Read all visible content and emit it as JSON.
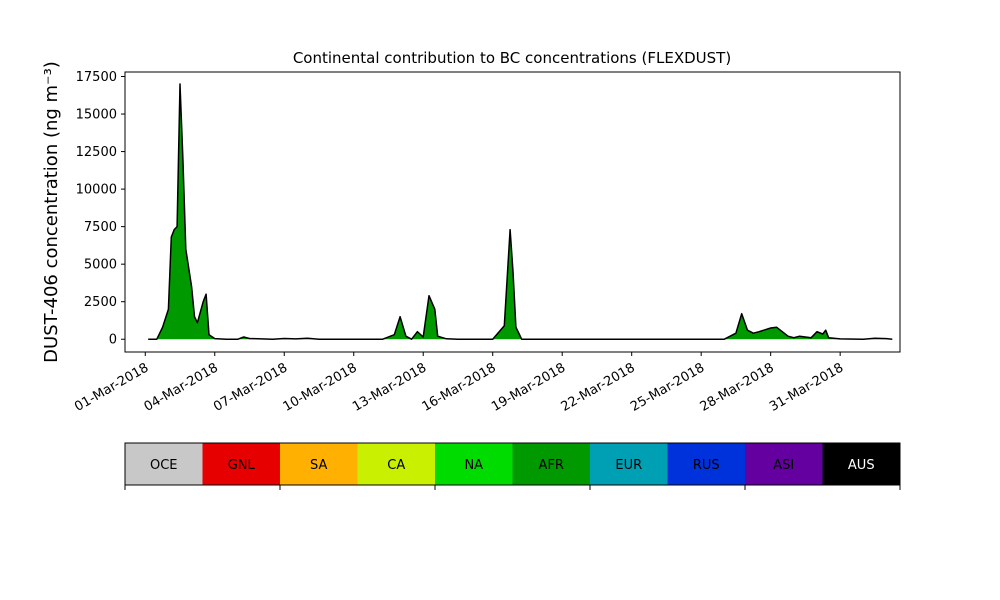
{
  "chart_data": {
    "type": "area",
    "title": "Continental contribution to BC concentrations (FLEXDUST)",
    "ylabel": "DUST-406 concentration (ng m⁻³)",
    "xlabel": "",
    "ylim": [
      -850,
      17800
    ],
    "xlim": [
      "2018-02-28T03:00",
      "2018-04-02T14:00"
    ],
    "grid": false,
    "x_ticks": [
      "01-Mar-2018",
      "04-Mar-2018",
      "07-Mar-2018",
      "10-Mar-2018",
      "13-Mar-2018",
      "16-Mar-2018",
      "19-Mar-2018",
      "22-Mar-2018",
      "25-Mar-2018",
      "28-Mar-2018",
      "31-Mar-2018"
    ],
    "y_ticks": [
      "0",
      "2500",
      "5000",
      "7500",
      "10000",
      "12500",
      "15000",
      "17500"
    ],
    "y_tick_values": [
      0,
      2500,
      5000,
      7500,
      10000,
      12500,
      15000,
      17500
    ],
    "series": [
      {
        "name": "AFR",
        "color": "#009900",
        "points": [
          [
            "2018-03-01T03:00",
            0
          ],
          [
            "2018-03-01T12:00",
            0
          ],
          [
            "2018-03-01T18:00",
            800
          ],
          [
            "2018-03-02T00:00",
            2000
          ],
          [
            "2018-03-02T03:00",
            6800
          ],
          [
            "2018-03-02T06:00",
            7300
          ],
          [
            "2018-03-02T09:00",
            7500
          ],
          [
            "2018-03-02T12:00",
            17000
          ],
          [
            "2018-03-02T15:00",
            12000
          ],
          [
            "2018-03-02T18:00",
            6000
          ],
          [
            "2018-03-03T00:00",
            3500
          ],
          [
            "2018-03-03T03:00",
            1500
          ],
          [
            "2018-03-03T06:00",
            1100
          ],
          [
            "2018-03-03T12:00",
            2500
          ],
          [
            "2018-03-03T15:00",
            3000
          ],
          [
            "2018-03-03T18:00",
            300
          ],
          [
            "2018-03-04T00:00",
            40
          ],
          [
            "2018-03-04T12:00",
            0
          ],
          [
            "2018-03-05T00:00",
            0
          ],
          [
            "2018-03-05T06:00",
            150
          ],
          [
            "2018-03-05T12:00",
            50
          ],
          [
            "2018-03-06T12:00",
            0
          ],
          [
            "2018-03-07T00:00",
            50
          ],
          [
            "2018-03-07T12:00",
            20
          ],
          [
            "2018-03-08T00:00",
            60
          ],
          [
            "2018-03-08T12:00",
            0
          ],
          [
            "2018-03-11T06:00",
            0
          ],
          [
            "2018-03-11T18:00",
            300
          ],
          [
            "2018-03-12T00:00",
            1500
          ],
          [
            "2018-03-12T06:00",
            200
          ],
          [
            "2018-03-12T12:00",
            0
          ],
          [
            "2018-03-12T18:00",
            500
          ],
          [
            "2018-03-13T00:00",
            150
          ],
          [
            "2018-03-13T06:00",
            2900
          ],
          [
            "2018-03-13T12:00",
            2000
          ],
          [
            "2018-03-13T15:00",
            200
          ],
          [
            "2018-03-14T00:00",
            30
          ],
          [
            "2018-03-14T12:00",
            0
          ],
          [
            "2018-03-16T00:00",
            0
          ],
          [
            "2018-03-16T12:00",
            900
          ],
          [
            "2018-03-16T18:00",
            7300
          ],
          [
            "2018-03-16T21:00",
            4500
          ],
          [
            "2018-03-17T00:00",
            800
          ],
          [
            "2018-03-17T06:00",
            0
          ],
          [
            "2018-03-26T00:00",
            0
          ],
          [
            "2018-03-26T12:00",
            400
          ],
          [
            "2018-03-26T18:00",
            1700
          ],
          [
            "2018-03-27T00:00",
            600
          ],
          [
            "2018-03-27T06:00",
            400
          ],
          [
            "2018-03-27T12:00",
            500
          ],
          [
            "2018-03-28T00:00",
            750
          ],
          [
            "2018-03-28T06:00",
            800
          ],
          [
            "2018-03-28T12:00",
            500
          ],
          [
            "2018-03-28T18:00",
            200
          ],
          [
            "2018-03-29T00:00",
            100
          ],
          [
            "2018-03-29T06:00",
            200
          ],
          [
            "2018-03-29T12:00",
            150
          ],
          [
            "2018-03-29T18:00",
            100
          ],
          [
            "2018-03-30T00:00",
            500
          ],
          [
            "2018-03-30T06:00",
            350
          ],
          [
            "2018-03-30T09:00",
            600
          ],
          [
            "2018-03-30T12:00",
            100
          ],
          [
            "2018-03-31T00:00",
            20
          ],
          [
            "2018-04-01T00:00",
            0
          ],
          [
            "2018-04-01T12:00",
            60
          ],
          [
            "2018-04-02T00:00",
            40
          ],
          [
            "2018-04-02T06:00",
            0
          ]
        ]
      }
    ],
    "total_line_color": "#000000"
  },
  "legend": {
    "placement": "bottom",
    "items": [
      {
        "label": "OCE",
        "color": "#c8c8c8",
        "text_color": "#000000"
      },
      {
        "label": "GNL",
        "color": "#e60000",
        "text_color": "#000000"
      },
      {
        "label": "SA",
        "color": "#ffb000",
        "text_color": "#000000"
      },
      {
        "label": "CA",
        "color": "#c8f000",
        "text_color": "#000000"
      },
      {
        "label": "NA",
        "color": "#00dc00",
        "text_color": "#000000"
      },
      {
        "label": "AFR",
        "color": "#009900",
        "text_color": "#000000"
      },
      {
        "label": "EUR",
        "color": "#00a0b4",
        "text_color": "#000000"
      },
      {
        "label": "RUS",
        "color": "#0032dc",
        "text_color": "#000000"
      },
      {
        "label": "ASI",
        "color": "#6400a0",
        "text_color": "#000000"
      },
      {
        "label": "AUS",
        "color": "#000000",
        "text_color": "#ffffff"
      }
    ]
  }
}
